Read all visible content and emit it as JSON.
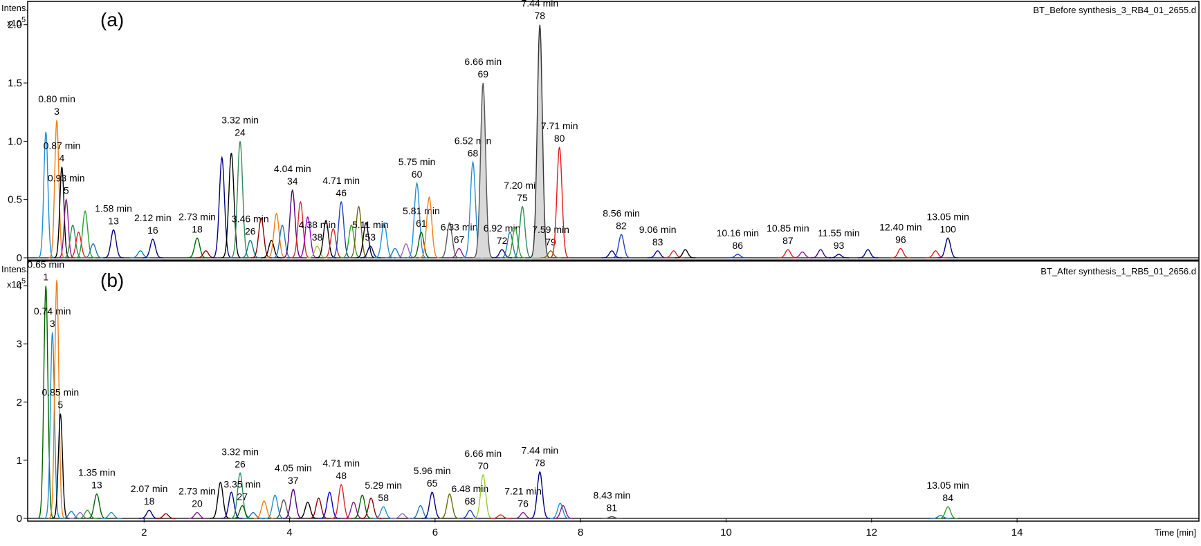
{
  "chart_data": [
    {
      "type": "line",
      "panel": "(a)",
      "file_name": "BT_Before synthesis_3_RB4_01_2655.d",
      "ylabel": "Intens.",
      "yscale_label": "x10",
      "yscale_exp": "5",
      "xlabel": "Time [min]",
      "xlim": [
        0.4,
        16.5
      ],
      "ylim": [
        0,
        2.2
      ],
      "y_ticks": [
        "0",
        "0.5",
        "1.0",
        "1.5",
        "2.0"
      ],
      "y_tick_values": [
        0,
        0.5,
        1.0,
        1.5,
        2.0
      ],
      "peaks": [
        {
          "rt": 0.65,
          "height": 1.08,
          "color": "#1f8fd6"
        },
        {
          "rt": 0.8,
          "height": 1.18,
          "color": "#f07d12",
          "label": "0.80 min",
          "id": "3"
        },
        {
          "rt": 0.87,
          "height": 0.78,
          "color": "#000000",
          "label": "0.87 min",
          "id": "4"
        },
        {
          "rt": 0.93,
          "height": 0.5,
          "color": "#8b1a8b",
          "label": "0.93 min",
          "id": "5"
        },
        {
          "rt": 1.02,
          "height": 0.28,
          "color": "#2e8b57"
        },
        {
          "rt": 1.1,
          "height": 0.22,
          "color": "#d62728"
        },
        {
          "rt": 1.19,
          "height": 0.4,
          "color": "#2ca02c"
        },
        {
          "rt": 1.3,
          "height": 0.12,
          "color": "#1f77b4"
        },
        {
          "rt": 1.58,
          "height": 0.24,
          "color": "#000080",
          "label": "1.58 min",
          "id": "13"
        },
        {
          "rt": 1.95,
          "height": 0.06,
          "color": "#1f77b4"
        },
        {
          "rt": 2.12,
          "height": 0.16,
          "color": "#000080",
          "label": "2.12 min",
          "id": "16"
        },
        {
          "rt": 2.73,
          "height": 0.17,
          "color": "#006400",
          "label": "2.73 min",
          "id": "18"
        },
        {
          "rt": 2.85,
          "height": 0.06,
          "color": "#8b0000"
        },
        {
          "rt": 3.07,
          "height": 0.86,
          "color": "#000080"
        },
        {
          "rt": 3.2,
          "height": 0.9,
          "color": "#000000"
        },
        {
          "rt": 3.32,
          "height": 1.0,
          "color": "#2e8b57",
          "label": "3.32 min",
          "id": "24"
        },
        {
          "rt": 3.46,
          "height": 0.15,
          "color": "#008080",
          "label": "3.46 min",
          "id": "26"
        },
        {
          "rt": 3.61,
          "height": 0.34,
          "color": "#8b0000"
        },
        {
          "rt": 3.75,
          "height": 0.15,
          "color": "#000000"
        },
        {
          "rt": 3.82,
          "height": 0.38,
          "color": "#f07d12"
        },
        {
          "rt": 3.9,
          "height": 0.28,
          "color": "#1f77b4"
        },
        {
          "rt": 4.04,
          "height": 0.58,
          "color": "#4b0082",
          "label": "4.04 min",
          "id": "34"
        },
        {
          "rt": 4.15,
          "height": 0.48,
          "color": "#d62728"
        },
        {
          "rt": 4.25,
          "height": 0.35,
          "color": "#9400d3"
        },
        {
          "rt": 4.38,
          "height": 0.1,
          "color": "#9acd32",
          "label": "4.38 min",
          "id": "38"
        },
        {
          "rt": 4.5,
          "height": 0.32,
          "color": "#000000"
        },
        {
          "rt": 4.6,
          "height": 0.25,
          "color": "#d62728"
        },
        {
          "rt": 4.71,
          "height": 0.48,
          "color": "#1f3fbf",
          "label": "4.71 min",
          "id": "46"
        },
        {
          "rt": 4.85,
          "height": 0.28,
          "color": "#2ca02c"
        },
        {
          "rt": 4.95,
          "height": 0.44,
          "color": "#6b6b00"
        },
        {
          "rt": 5.05,
          "height": 0.3,
          "color": "#000000"
        },
        {
          "rt": 5.11,
          "height": 0.1,
          "color": "#000080",
          "label": "5.11 min",
          "id": "53"
        },
        {
          "rt": 5.3,
          "height": 0.3,
          "color": "#1f8fd6"
        },
        {
          "rt": 5.45,
          "height": 0.08,
          "color": "#1f77b4"
        },
        {
          "rt": 5.6,
          "height": 0.12,
          "color": "#9467bd"
        },
        {
          "rt": 5.75,
          "height": 0.64,
          "color": "#1f8fd6",
          "label": "5.75 min",
          "id": "60"
        },
        {
          "rt": 5.81,
          "height": 0.22,
          "color": "#006400",
          "label": "5.81 min",
          "id": "61"
        },
        {
          "rt": 5.92,
          "height": 0.52,
          "color": "#f07d12"
        },
        {
          "rt": 6.2,
          "height": 0.3,
          "color": "#555555"
        },
        {
          "rt": 6.33,
          "height": 0.08,
          "color": "#8b1a8b",
          "label": "6.33 min",
          "id": "67"
        },
        {
          "rt": 6.52,
          "height": 0.82,
          "color": "#1f8fd6",
          "label": "6.52 min",
          "id": "68"
        },
        {
          "rt": 6.66,
          "height": 1.5,
          "color": "#555555",
          "fill": "#d9d9d9",
          "label": "6.66 min",
          "id": "69"
        },
        {
          "rt": 6.92,
          "height": 0.07,
          "color": "#000080",
          "label": "6.92 min",
          "id": "72"
        },
        {
          "rt": 7.03,
          "height": 0.22,
          "color": "#1f77b4"
        },
        {
          "rt": 7.1,
          "height": 0.26,
          "color": "#2ca02c"
        },
        {
          "rt": 7.2,
          "height": 0.44,
          "color": "#2e8b57",
          "label": "7.20 min",
          "id": "75"
        },
        {
          "rt": 7.44,
          "height": 2.0,
          "color": "#333333",
          "fill": "#d9d9d9",
          "label": "7.44 min",
          "id": "78"
        },
        {
          "rt": 7.59,
          "height": 0.06,
          "color": "#6b6b00",
          "label": "7.59 min",
          "id": "79"
        },
        {
          "rt": 7.71,
          "height": 0.95,
          "color": "#e31a1c",
          "label": "7.71 min",
          "id": "80"
        },
        {
          "rt": 8.43,
          "height": 0.06,
          "color": "#000080"
        },
        {
          "rt": 8.56,
          "height": 0.2,
          "color": "#1f3fbf",
          "label": "8.56 min",
          "id": "82"
        },
        {
          "rt": 9.06,
          "height": 0.06,
          "color": "#0000cd",
          "label": "9.06 min",
          "id": "83"
        },
        {
          "rt": 9.28,
          "height": 0.06,
          "color": "#d62728"
        },
        {
          "rt": 9.44,
          "height": 0.07,
          "color": "#000000"
        },
        {
          "rt": 10.16,
          "height": 0.03,
          "color": "#1f3fbf",
          "label": "10.16 min",
          "id": "86"
        },
        {
          "rt": 10.85,
          "height": 0.07,
          "color": "#e31a1c",
          "label": "10.85 min",
          "id": "87"
        },
        {
          "rt": 11.05,
          "height": 0.05,
          "color": "#8b1a8b"
        },
        {
          "rt": 11.3,
          "height": 0.07,
          "color": "#4b0082"
        },
        {
          "rt": 11.55,
          "height": 0.03,
          "color": "#000080",
          "label": "11.55 min",
          "id": "93"
        },
        {
          "rt": 11.95,
          "height": 0.07,
          "color": "#000080"
        },
        {
          "rt": 12.4,
          "height": 0.08,
          "color": "#e31a1c",
          "label": "12.40 min",
          "id": "96"
        },
        {
          "rt": 12.88,
          "height": 0.06,
          "color": "#e31a1c"
        },
        {
          "rt": 13.05,
          "height": 0.17,
          "color": "#000080",
          "label": "13.05 min",
          "id": "100"
        }
      ]
    },
    {
      "type": "line",
      "panel": "(b)",
      "file_name": "BT_After synthesis_1_RB5_01_2656.d",
      "ylabel": "Intens.",
      "yscale_label": "x10",
      "yscale_exp": "5",
      "xlabel": "Time [min]",
      "xlim": [
        0.4,
        16.5
      ],
      "ylim": [
        0,
        4.4
      ],
      "x_ticks": [
        "2",
        "4",
        "6",
        "8",
        "10",
        "12",
        "14"
      ],
      "x_tick_values": [
        2,
        4,
        6,
        8,
        10,
        12,
        14
      ],
      "y_ticks": [
        "0",
        "1",
        "2",
        "3",
        "4"
      ],
      "y_tick_values": [
        0,
        1,
        2,
        3,
        4
      ],
      "peaks": [
        {
          "rt": 0.65,
          "height": 4.0,
          "color": "#006400",
          "label": "0.65 min",
          "id": "1"
        },
        {
          "rt": 0.74,
          "height": 3.2,
          "color": "#1f8fd6",
          "label": "0.74 min",
          "id": "3"
        },
        {
          "rt": 0.8,
          "height": 4.1,
          "color": "#f07d12"
        },
        {
          "rt": 0.85,
          "height": 1.8,
          "color": "#000000",
          "label": "0.85 min",
          "id": "5"
        },
        {
          "rt": 1.0,
          "height": 0.12,
          "color": "#1f77b4"
        },
        {
          "rt": 1.12,
          "height": 0.1,
          "color": "#9467bd"
        },
        {
          "rt": 1.22,
          "height": 0.14,
          "color": "#2ca02c"
        },
        {
          "rt": 1.35,
          "height": 0.42,
          "color": "#006400",
          "label": "1.35 min",
          "id": "13"
        },
        {
          "rt": 1.55,
          "height": 0.1,
          "color": "#1f8fd6"
        },
        {
          "rt": 2.07,
          "height": 0.14,
          "color": "#000080",
          "label": "2.07 min",
          "id": "18"
        },
        {
          "rt": 2.3,
          "height": 0.08,
          "color": "#8b0000"
        },
        {
          "rt": 2.73,
          "height": 0.1,
          "color": "#8b1a8b",
          "label": "2.73 min",
          "id": "20"
        },
        {
          "rt": 3.05,
          "height": 0.62,
          "color": "#000000"
        },
        {
          "rt": 3.2,
          "height": 0.45,
          "color": "#000080"
        },
        {
          "rt": 3.32,
          "height": 0.78,
          "color": "#2e8b57",
          "label": "3.32 min",
          "id": "26"
        },
        {
          "rt": 3.35,
          "height": 0.22,
          "color": "#006400",
          "label": "3.35 min",
          "id": "27"
        },
        {
          "rt": 3.5,
          "height": 0.1,
          "color": "#1f77b4"
        },
        {
          "rt": 3.65,
          "height": 0.3,
          "color": "#f07d12"
        },
        {
          "rt": 3.8,
          "height": 0.4,
          "color": "#1f8fd6"
        },
        {
          "rt": 3.92,
          "height": 0.32,
          "color": "#555555"
        },
        {
          "rt": 4.05,
          "height": 0.5,
          "color": "#4b0082",
          "label": "4.05 min",
          "id": "37"
        },
        {
          "rt": 4.25,
          "height": 0.28,
          "color": "#000000"
        },
        {
          "rt": 4.4,
          "height": 0.35,
          "color": "#8b0000"
        },
        {
          "rt": 4.55,
          "height": 0.45,
          "color": "#0000cd"
        },
        {
          "rt": 4.71,
          "height": 0.58,
          "color": "#d62728",
          "label": "4.71 min",
          "id": "48"
        },
        {
          "rt": 4.88,
          "height": 0.28,
          "color": "#8b1a8b"
        },
        {
          "rt": 5.0,
          "height": 0.4,
          "color": "#006400"
        },
        {
          "rt": 5.12,
          "height": 0.35,
          "color": "#8b0000"
        },
        {
          "rt": 5.29,
          "height": 0.2,
          "color": "#1f8fd6",
          "label": "5.29 min",
          "id": "58"
        },
        {
          "rt": 5.55,
          "height": 0.08,
          "color": "#9467bd"
        },
        {
          "rt": 5.8,
          "height": 0.22,
          "color": "#1f77b4"
        },
        {
          "rt": 5.96,
          "height": 0.45,
          "color": "#000080",
          "label": "5.96 min",
          "id": "65"
        },
        {
          "rt": 6.2,
          "height": 0.42,
          "color": "#6b6b00"
        },
        {
          "rt": 6.48,
          "height": 0.14,
          "color": "#1f3fbf",
          "label": "6.48 min",
          "id": "68"
        },
        {
          "rt": 6.66,
          "height": 0.75,
          "color": "#9acd32",
          "label": "6.66 min",
          "id": "70"
        },
        {
          "rt": 6.9,
          "height": 0.06,
          "color": "#d62728"
        },
        {
          "rt": 7.21,
          "height": 0.1,
          "color": "#8b1a8b",
          "label": "7.21 min",
          "id": "76"
        },
        {
          "rt": 7.44,
          "height": 0.8,
          "color": "#000080",
          "label": "7.44 min",
          "id": "78"
        },
        {
          "rt": 7.72,
          "height": 0.26,
          "color": "#1f8fd6"
        },
        {
          "rt": 7.76,
          "height": 0.22,
          "color": "#8b1a8b"
        },
        {
          "rt": 8.43,
          "height": 0.03,
          "color": "#555555",
          "label": "8.43 min",
          "id": "81"
        },
        {
          "rt": 12.95,
          "height": 0.05,
          "color": "#1f77b4"
        },
        {
          "rt": 13.05,
          "height": 0.2,
          "color": "#2ca02c",
          "label": "13.05 min",
          "id": "84"
        }
      ]
    }
  ]
}
